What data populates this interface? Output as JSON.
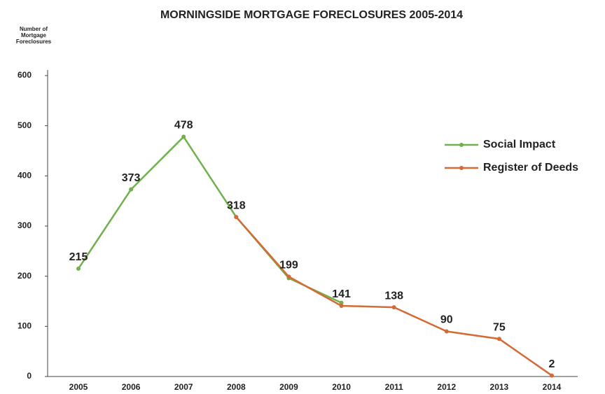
{
  "chart_data": {
    "type": "line",
    "title": "MORNINGSIDE MORTGAGE FORECLOSURES 2005-2014",
    "ylabel": [
      "Number of",
      "Mortgage",
      "Foreclosures"
    ],
    "categories": [
      "2005",
      "2006",
      "2007",
      "2008",
      "2009",
      "2010",
      "2011",
      "2012",
      "2013",
      "2014"
    ],
    "series": [
      {
        "name": "Social Impact",
        "color": "#72b04e",
        "values": [
          215,
          373,
          478,
          318,
          196,
          147,
          null,
          null,
          null,
          null
        ],
        "value_labels": [
          "215",
          "373",
          "478",
          null,
          null,
          null,
          null,
          null,
          null,
          null
        ]
      },
      {
        "name": "Register of Deeds",
        "color": "#d46b36",
        "values": [
          null,
          null,
          null,
          318,
          199,
          141,
          138,
          90,
          75,
          2
        ],
        "value_labels": [
          null,
          null,
          null,
          "318",
          "199",
          "141",
          "138",
          "90",
          "75",
          "2"
        ]
      }
    ],
    "ylim": [
      0,
      600
    ],
    "yticks": [
      0,
      100,
      200,
      300,
      400,
      500,
      600
    ],
    "grid": false,
    "legend": "right"
  }
}
